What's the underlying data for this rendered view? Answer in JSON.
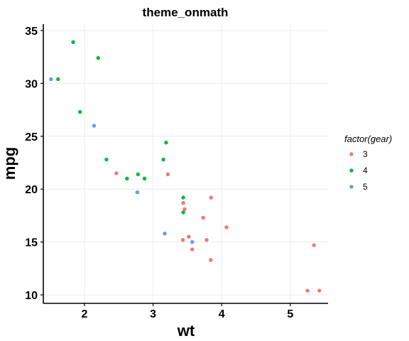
{
  "chart_data": {
    "type": "scatter",
    "title": "theme_onmath",
    "xlabel": "wt",
    "ylabel": "mpg",
    "xlim": [
      1.4,
      5.55
    ],
    "ylim": [
      9.2,
      35.6
    ],
    "xticks": [
      2,
      3,
      4,
      5
    ],
    "yticks": [
      10,
      15,
      20,
      25,
      30,
      35
    ],
    "grid": true,
    "legend": {
      "title": "factor(gear)",
      "placement": "right"
    },
    "series": [
      {
        "name": "3",
        "color": "#F8766D",
        "points": [
          [
            2.465,
            21.5
          ],
          [
            3.215,
            21.4
          ],
          [
            3.44,
            18.7
          ],
          [
            3.46,
            18.1
          ],
          [
            3.57,
            14.3
          ],
          [
            4.07,
            16.4
          ],
          [
            3.73,
            17.3
          ],
          [
            3.78,
            15.2
          ],
          [
            5.25,
            10.4
          ],
          [
            5.424,
            10.4
          ],
          [
            5.345,
            14.7
          ],
          [
            3.52,
            15.5
          ],
          [
            3.435,
            15.2
          ],
          [
            3.84,
            13.3
          ],
          [
            3.845,
            19.2
          ]
        ]
      },
      {
        "name": "4",
        "color": "#00BA38",
        "points": [
          [
            2.62,
            21.0
          ],
          [
            2.875,
            21.0
          ],
          [
            2.32,
            22.8
          ],
          [
            3.19,
            24.4
          ],
          [
            3.15,
            22.8
          ],
          [
            3.44,
            19.2
          ],
          [
            3.44,
            17.8
          ],
          [
            2.2,
            32.4
          ],
          [
            1.615,
            30.4
          ],
          [
            1.835,
            33.9
          ],
          [
            1.935,
            27.3
          ],
          [
            2.78,
            21.4
          ]
        ]
      },
      {
        "name": "5",
        "color": "#619CFF",
        "points": [
          [
            2.14,
            26.0
          ],
          [
            1.513,
            30.4
          ],
          [
            3.17,
            15.8
          ],
          [
            2.77,
            19.7
          ],
          [
            3.57,
            15.0
          ]
        ]
      }
    ]
  }
}
